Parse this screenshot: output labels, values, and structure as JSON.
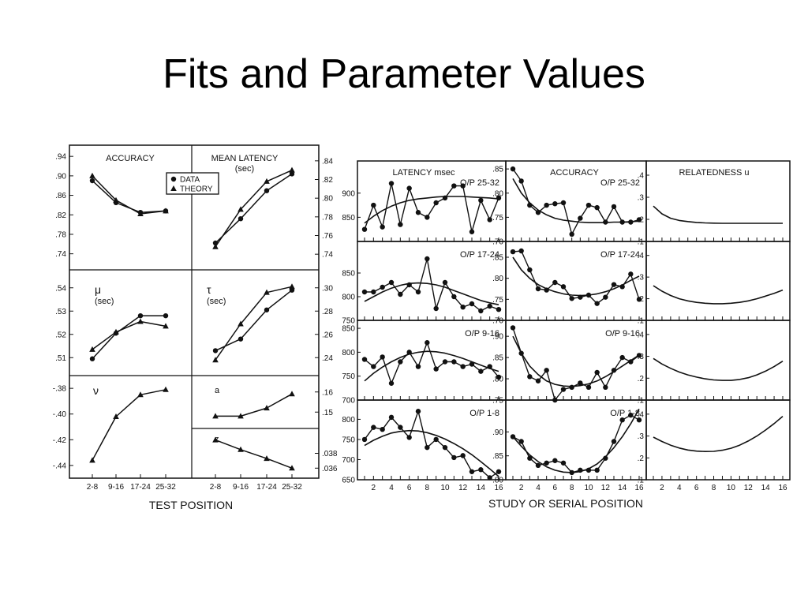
{
  "slide": {
    "title": "Fits and Parameter Values"
  },
  "chart_data": [
    {
      "type": "line",
      "figure": "left",
      "x_label": "TEST POSITION",
      "categories": [
        "2-8",
        "9-16",
        "17-24",
        "25-32"
      ],
      "legend": {
        "data": "DATA",
        "theory": "THEORY"
      },
      "panels": [
        {
          "id": "accuracy",
          "title": "ACCURACY",
          "yticks": [
            ".74",
            ".78",
            ".82",
            ".86",
            ".90",
            ".94"
          ],
          "ylim": [
            0.72,
            0.95
          ],
          "data": [
            0.89,
            0.845,
            0.825,
            0.828
          ],
          "theory": [
            0.9,
            0.85,
            0.822,
            0.828
          ]
        },
        {
          "id": "mean-latency",
          "title": "MEAN LATENCY",
          "subtitle": "(sec)",
          "yticks": [
            ".74",
            ".76",
            ".78",
            ".80",
            ".82",
            ".84"
          ],
          "ylim": [
            0.73,
            0.85
          ],
          "data": [
            0.752,
            0.778,
            0.808,
            0.826
          ],
          "theory": [
            0.748,
            0.788,
            0.818,
            0.83
          ]
        },
        {
          "id": "mu",
          "title": "μ",
          "subtitle": "(sec)",
          "yticks": [
            ".51",
            ".52",
            ".53",
            ".54"
          ],
          "ylim": [
            0.505,
            0.545
          ],
          "data": [
            0.5095,
            0.5205,
            0.528,
            0.528
          ],
          "theory": [
            0.5135,
            0.521,
            0.5255,
            0.5235
          ]
        },
        {
          "id": "tau",
          "title": "τ",
          "subtitle": "(sec)",
          "yticks": [
            ".24",
            ".26",
            ".28",
            ".30"
          ],
          "ylim": [
            0.23,
            0.31
          ],
          "data": [
            0.246,
            0.256,
            0.281,
            0.298
          ],
          "theory": [
            0.238,
            0.269,
            0.296,
            0.301
          ]
        },
        {
          "id": "nu",
          "title": "ν",
          "yticks": [
            "-.44",
            "-.42",
            "-.40",
            "-.38"
          ],
          "ylim": [
            -0.445,
            -0.375
          ],
          "data": [
            null,
            null,
            null,
            null
          ],
          "theory": [
            -0.436,
            -0.402,
            -0.385,
            -0.381
          ]
        },
        {
          "id": "a",
          "title": "a",
          "yticks": [
            ".15",
            ".16"
          ],
          "ylim": [
            0.145,
            0.165
          ],
          "data": [
            null,
            null,
            null,
            null
          ],
          "theory": [
            0.148,
            0.148,
            0.152,
            0.159
          ]
        },
        {
          "id": "z",
          "title": "z",
          "yticks": [
            ".036",
            ".038"
          ],
          "ylim": [
            0.0355,
            0.0405
          ],
          "data": [
            null,
            null,
            null,
            null
          ],
          "theory": [
            0.0398,
            0.0385,
            0.0373,
            0.036
          ]
        }
      ]
    },
    {
      "type": "line",
      "figure": "right",
      "x_label": "STUDY OR SERIAL POSITION",
      "x": [
        1,
        2,
        3,
        4,
        5,
        6,
        7,
        8,
        9,
        10,
        11,
        12,
        13,
        14,
        15,
        16
      ],
      "xticks": [
        "2",
        "4",
        "6",
        "8",
        "10",
        "12",
        "14",
        "16"
      ],
      "columns": [
        {
          "id": "latency",
          "title": "LATENCY msec"
        },
        {
          "id": "accuracy",
          "title": "ACCURACY"
        },
        {
          "id": "relatedness",
          "title": "RELATEDNESS u"
        }
      ],
      "rows": [
        {
          "label": "O/P 25-32",
          "latency": {
            "yticks": [
              "850",
              "900"
            ],
            "ylim": [
              800,
              960
            ],
            "data": [
              825,
              875,
              830,
              920,
              835,
              910,
              860,
              850,
              880,
              890,
              915,
              915,
              820,
              885,
              845,
              890
            ],
            "theory": [
              838,
              852,
              864,
              873,
              880,
              885,
              888,
              890,
              892,
              893,
              893,
              893,
              892,
              891,
              890,
              888
            ]
          },
          "accuracy": {
            "yticks": [
              ".70",
              ".75",
              ".80",
              ".85"
            ],
            "ylim": [
              0.7,
              0.86
            ],
            "data": [
              0.85,
              0.825,
              0.775,
              0.76,
              0.775,
              0.778,
              0.78,
              0.715,
              0.748,
              0.775,
              0.77,
              0.74,
              0.772,
              0.74,
              0.74,
              0.745
            ],
            "theory": [
              0.83,
              0.8,
              0.78,
              0.765,
              0.755,
              0.748,
              0.744,
              0.742,
              0.74,
              0.739,
              0.739,
              0.739,
              0.74,
              0.74,
              0.741,
              0.742
            ]
          },
          "relatedness": {
            "yticks": [
              ".1",
              ".2",
              ".3",
              ".4"
            ],
            "ylim": [
              0.1,
              0.45
            ],
            "theory": [
              0.26,
              0.225,
              0.205,
              0.195,
              0.19,
              0.186,
              0.184,
              0.183,
              0.182,
              0.182,
              0.182,
              0.182,
              0.182,
              0.182,
              0.182,
              0.182
            ]
          }
        },
        {
          "label": "O/P 17-24",
          "latency": {
            "yticks": [
              "750",
              "800",
              "850"
            ],
            "ylim": [
              750,
              910
            ],
            "data": [
              810,
              810,
              820,
              830,
              805,
              825,
              810,
              880,
              775,
              830,
              800,
              778,
              785,
              770,
              780,
              773
            ],
            "theory": [
              790,
              800,
              810,
              818,
              824,
              828,
              829,
              828,
              825,
              820,
              813,
              806,
              799,
              792,
              787,
              783
            ]
          },
          "accuracy": {
            "yticks": [
              ".70",
              ".75",
              ".80",
              ".85"
            ],
            "ylim": [
              0.7,
              0.88
            ],
            "data": [
              0.863,
              0.865,
              0.82,
              0.775,
              0.772,
              0.79,
              0.78,
              0.752,
              0.755,
              0.76,
              0.74,
              0.755,
              0.785,
              0.78,
              0.81,
              0.75
            ],
            "theory": [
              0.85,
              0.82,
              0.8,
              0.785,
              0.775,
              0.768,
              0.763,
              0.76,
              0.759,
              0.76,
              0.763,
              0.768,
              0.775,
              0.784,
              0.795,
              0.805
            ]
          },
          "relatedness": {
            "yticks": [
              ".1",
              ".2",
              ".3",
              ".4"
            ],
            "ylim": [
              0.1,
              0.45
            ],
            "theory": [
              0.26,
              0.235,
              0.215,
              0.2,
              0.19,
              0.183,
              0.179,
              0.177,
              0.177,
              0.179,
              0.183,
              0.19,
              0.2,
              0.212,
              0.225,
              0.24
            ]
          }
        },
        {
          "label": "O/P 9-16",
          "latency": {
            "yticks": [
              "700",
              "750",
              "800",
              "850"
            ],
            "ylim": [
              700,
              860
            ],
            "data": [
              785,
              770,
              790,
              735,
              780,
              800,
              770,
              820,
              765,
              780,
              780,
              770,
              775,
              760,
              770,
              748
            ],
            "theory": [
              740,
              756,
              769,
              780,
              789,
              796,
              800,
              802,
              801,
              798,
              793,
              787,
              780,
              773,
              766,
              760
            ]
          },
          "accuracy": {
            "yticks": [
              ".75",
              ".80",
              ".85",
              ".90"
            ],
            "ylim": [
              0.75,
              0.93
            ],
            "data": [
              0.92,
              0.86,
              0.805,
              0.795,
              0.82,
              0.75,
              0.775,
              0.78,
              0.79,
              0.78,
              0.815,
              0.78,
              0.82,
              0.85,
              0.84,
              0.855
            ],
            "theory": [
              0.9,
              0.86,
              0.83,
              0.81,
              0.795,
              0.787,
              0.783,
              0.782,
              0.784,
              0.788,
              0.795,
              0.805,
              0.817,
              0.83,
              0.843,
              0.856
            ]
          },
          "relatedness": {
            "yticks": [
              ".1",
              ".2",
              ".3",
              ".4"
            ],
            "ylim": [
              0.1,
              0.45
            ],
            "theory": [
              0.29,
              0.265,
              0.245,
              0.228,
              0.215,
              0.205,
              0.197,
              0.192,
              0.19,
              0.19,
              0.194,
              0.202,
              0.215,
              0.232,
              0.253,
              0.278
            ]
          }
        },
        {
          "label": "O/P 1-8",
          "latency": {
            "yticks": [
              "650",
              "700",
              "750",
              "800"
            ],
            "ylim": [
              650,
              840
            ],
            "data": [
              750,
              780,
              775,
              805,
              780,
              755,
              820,
              730,
              750,
              730,
              705,
              710,
              670,
              675,
              655,
              670
            ],
            "theory": [
              735,
              748,
              758,
              766,
              770,
              772,
              771,
              767,
              760,
              751,
              740,
              727,
              712,
              695,
              677,
              658
            ]
          },
          "accuracy": {
            "yticks": [
              ".80",
              ".85",
              ".90"
            ],
            "ylim": [
              0.8,
              0.96
            ],
            "data": [
              0.89,
              0.88,
              0.845,
              0.83,
              0.835,
              0.84,
              0.835,
              0.815,
              0.82,
              0.82,
              0.82,
              0.845,
              0.88,
              0.925,
              0.935,
              0.925
            ],
            "theory": [
              0.89,
              0.87,
              0.852,
              0.838,
              0.827,
              0.82,
              0.816,
              0.815,
              0.817,
              0.823,
              0.833,
              0.848,
              0.867,
              0.89,
              0.917,
              0.948
            ]
          },
          "relatedness": {
            "yticks": [
              ".1",
              ".2",
              ".3",
              ".4"
            ],
            "ylim": [
              0.1,
              0.45
            ],
            "theory": [
              0.295,
              0.275,
              0.258,
              0.245,
              0.236,
              0.231,
              0.229,
              0.23,
              0.235,
              0.244,
              0.258,
              0.277,
              0.3,
              0.327,
              0.357,
              0.39
            ]
          }
        }
      ]
    }
  ]
}
